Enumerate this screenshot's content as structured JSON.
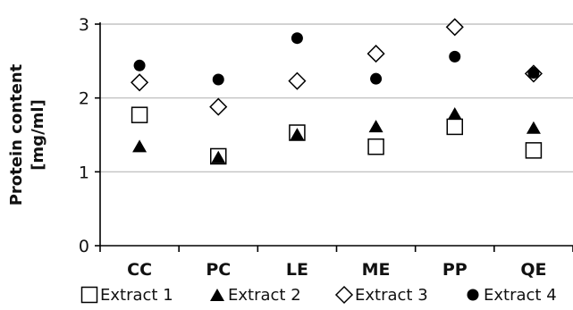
{
  "chart_data": {
    "type": "scatter",
    "categories": [
      "CC",
      "PC",
      "LE",
      "ME",
      "PP",
      "QE"
    ],
    "ylabel_lines": [
      "Protein content",
      "[mg/ml]"
    ],
    "xlabel": "",
    "ylim": [
      0,
      3
    ],
    "yticks": [
      0,
      1,
      2,
      3
    ],
    "grid": true,
    "legend_position": "bottom",
    "series": [
      {
        "name": "Extract 1",
        "marker": "square-open",
        "values": [
          1.77,
          1.21,
          1.53,
          1.34,
          1.61,
          1.29
        ]
      },
      {
        "name": "Extract 2",
        "marker": "triangle",
        "values": [
          1.35,
          1.2,
          1.51,
          1.62,
          1.79,
          1.6
        ]
      },
      {
        "name": "Extract 3",
        "marker": "diamond-open",
        "values": [
          2.21,
          1.88,
          2.23,
          2.6,
          2.96,
          2.33
        ]
      },
      {
        "name": "Extract 4",
        "marker": "circle",
        "values": [
          2.44,
          2.25,
          2.81,
          2.26,
          2.56,
          2.34
        ]
      }
    ]
  }
}
